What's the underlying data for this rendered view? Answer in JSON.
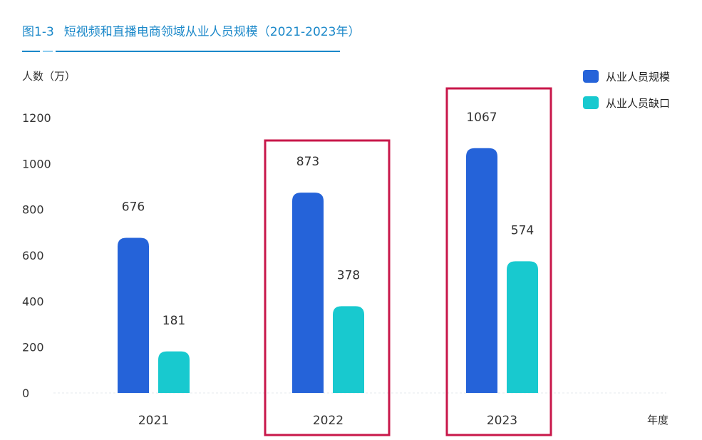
{
  "figure": {
    "number": "图1-3",
    "title": "短视频和直播电商领域从业人员规模（2021-2023年）"
  },
  "colors": {
    "title": "#1b88c9",
    "series_scale": "#2563d9",
    "series_gap": "#18c9cf",
    "highlight_box": "#c8174a"
  },
  "chart_data": {
    "type": "bar",
    "ylabel": "人数（万）",
    "xlabel": "年度",
    "categories": [
      "2021",
      "2022",
      "2023"
    ],
    "ylim": [
      0,
      1200
    ],
    "yticks": [
      "0",
      "200",
      "400",
      "600",
      "800",
      "1000",
      "1200"
    ],
    "series": [
      {
        "name": "从业人员规模",
        "values": [
          676,
          873,
          1067
        ],
        "labels": [
          "676",
          "873",
          "1067"
        ]
      },
      {
        "name": "从业人员缺口",
        "values": [
          181,
          378,
          574
        ],
        "labels": [
          "181",
          "378",
          "574"
        ]
      }
    ],
    "highlighted_categories": [
      "2022",
      "2023"
    ],
    "legend_position": "top-right",
    "grid": false
  }
}
